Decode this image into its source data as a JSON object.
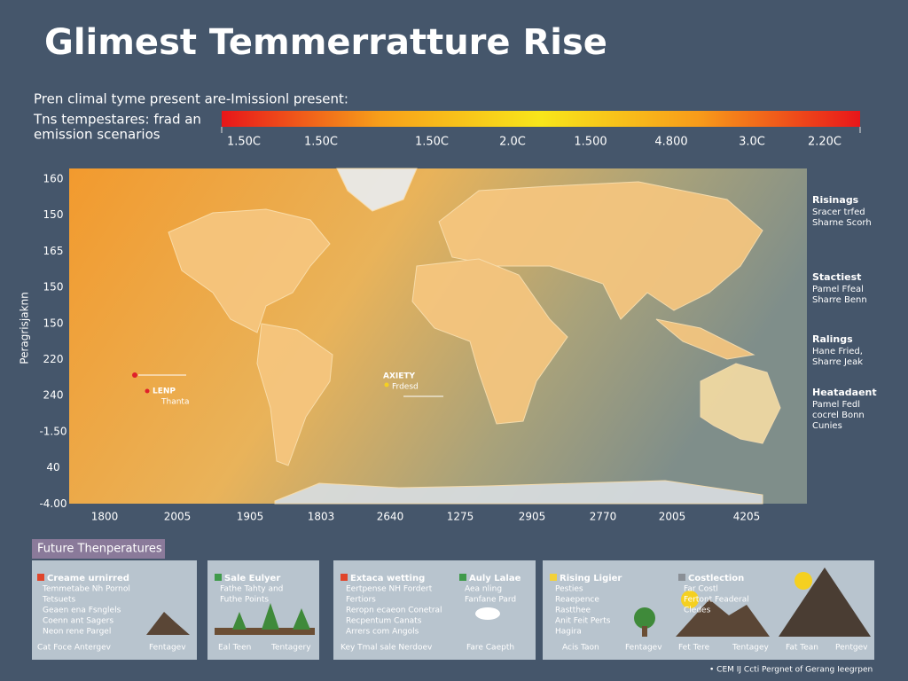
{
  "header": {
    "title": "Glimest Temmerratture Rise",
    "subtitle_lines": [
      "Pren climal tyme present are-Imissionl present:",
      "Tns tempestares: frad an",
      "emission scenarios"
    ]
  },
  "scale": {
    "labels": [
      "1.50C",
      "1.50C",
      "1.50C",
      "2.0C",
      "1.500",
      "4.800",
      "3.0C",
      "2.20C"
    ]
  },
  "map": {
    "y_axis_title": "Peragrisjaknn",
    "y_labels": [
      "160",
      "150",
      "165",
      "150",
      "150",
      "220",
      "240",
      "-1.50",
      "40",
      "-4.00"
    ],
    "x_labels": [
      "1800",
      "2005",
      "1905",
      "1803",
      "2640",
      "1275",
      "2905",
      "2770",
      "2005",
      "4205"
    ],
    "markers": [
      {
        "label": "LENP",
        "sub": "Thanta"
      },
      {
        "label": "AXIETY",
        "sub": "Frdesd"
      }
    ],
    "side_notes": [
      {
        "title": "Risinags",
        "lines": [
          "Sracer trfed",
          "Sharne Scorh"
        ]
      },
      {
        "title": "Stactiest",
        "lines": [
          "Pamel Ffeal",
          "Sharre Benn"
        ]
      },
      {
        "title": "Ralings",
        "lines": [
          "Hane Fried,",
          "Sharre Jeak"
        ]
      },
      {
        "title": "Heatadaent",
        "lines": [
          "Pamel Fedl",
          "cocrel Bonn",
          "Cunies"
        ]
      }
    ]
  },
  "legend_title": "Future Thenperatures",
  "panels": [
    {
      "columns": [
        {
          "header": "Creame urnirred",
          "color": "#e0452b",
          "items": [
            "Temmetabe Nh Pornol",
            "Tetsuets",
            "Geaen ena Fsnglels",
            "Coenn ant Sagers",
            "Neon rene Pargel"
          ]
        }
      ],
      "footers": [
        "Cat Foce Antergev",
        "Fentagev"
      ]
    },
    {
      "columns": [
        {
          "header": "Sale Eulyer",
          "color": "#3f9a4a",
          "items": [
            "Fathe Tahty and",
            "Futhe Points"
          ]
        }
      ],
      "footers": [
        "Eal Teen",
        "Tentagery"
      ]
    },
    {
      "columns": [
        {
          "header": "Extaca wetting",
          "color": "#e0452b",
          "items": [
            "Eertpense NH Fordert",
            "Fertiors",
            "Reropn ecaeon Conetral",
            "Recpentum Canats",
            "Arrers com Angols"
          ]
        },
        {
          "header": "Auly Lalae",
          "color": "#3f9a4a",
          "items": [
            "Aea nling",
            "Fanfane Pard"
          ]
        }
      ],
      "footers": [
        "Key Tmal sale Nerdoev",
        "Fare Caepth"
      ]
    },
    {
      "columns": [
        {
          "header": "Rising Ligier",
          "color": "#f2d13a",
          "items": [
            "Pesties",
            "Reaepence",
            "Rastthee",
            "Anit Feit Perts",
            "Hagira"
          ]
        },
        {
          "header": "Costlection",
          "color": "#8a8f96",
          "items": [
            "Far Costl",
            "Fertont Feaderal",
            "Cledes"
          ]
        }
      ],
      "footers": [
        "Acis Taon",
        "Fentagev",
        "Fet Tere",
        "Tentagey",
        "Fat Tean",
        "Pentgev"
      ]
    }
  ],
  "footer": "• CEM IJ Ccti Pergnet of Gerang Ieegrpen"
}
